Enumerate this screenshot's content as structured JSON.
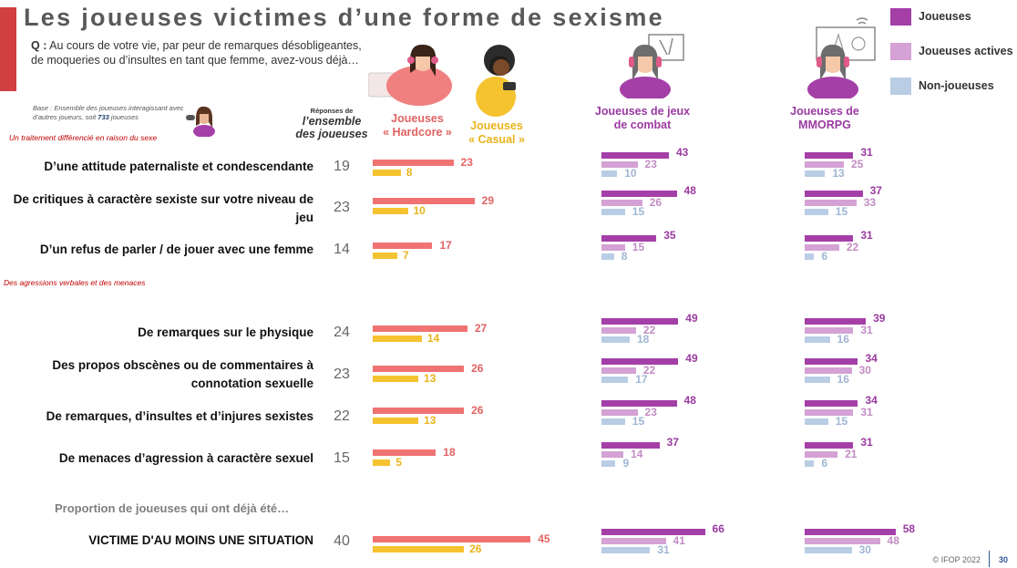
{
  "title": "Les joueuses victimes d’une forme de sexisme",
  "question": {
    "prefix": "Q :",
    "text": "Au cours de votre vie, par peur de remarques désobligeantes, de moqueries ou d’insultes en tant que femme, avez-vous déjà…"
  },
  "base_note": {
    "prefix": "Base : Ensemble des joueuses interagissant avec d’autres joueurs, soit ",
    "count": "733",
    "suffix": " joueuses"
  },
  "sections": {
    "traitement": "Un traitement différencié en raison du sexe",
    "agressions": "Des agressions verbales et des menaces"
  },
  "headers": {
    "ensemble_small": "Réponses de",
    "ensemble_big": "l’ensemble des joueuses",
    "hardcore_line1": "Joueuses",
    "hardcore_line2": "« Hardcore »",
    "casual_line1": "Joueuses",
    "casual_line2": "« Casual »",
    "combat_line1": "Joueuses de jeux",
    "combat_line2": "de combat",
    "mmorpg_line1": "Joueuses de",
    "mmorpg_line2": "MMORPG"
  },
  "legend": {
    "joueuses": "Joueuses",
    "actives": "Joueuses actives",
    "non": "Non-joueuses"
  },
  "proportion_label": "Proportion de joueuses qui ont déjà été…",
  "footer": "© IFOP 2022",
  "page_number": "30",
  "colors": {
    "hardcore": "#f07373",
    "casual": "#f5c330",
    "joueuses": "#a43fa8",
    "actives": "#d4a2d4",
    "non": "#b9cde5",
    "hardcore_text": "#e26262",
    "casual_text": "#e8b41c",
    "purple_text": "#9a3aa0",
    "title_red": "#d04040"
  },
  "chart_data": {
    "type": "bar",
    "title": "Les joueuses victimes d’une forme de sexisme",
    "categories": [
      "D’une attitude paternaliste et condescendante",
      "De critiques à caractère sexiste sur votre niveau de jeu",
      "D’un refus de parler / de jouer avec une femme",
      "De remarques sur le physique",
      "Des propos obscènes ou de commentaires à connotation sexuelle",
      "De remarques, d’insultes et d’injures sexistes",
      "De menaces d’agression à caractère sexuel",
      "VICTIME D'AU MOINS UNE SITUATION"
    ],
    "ensemble": [
      19,
      23,
      14,
      24,
      23,
      22,
      15,
      40
    ],
    "hardcore_casual": {
      "series": [
        {
          "name": "Joueuses « Hardcore »",
          "values": [
            23,
            29,
            17,
            27,
            26,
            26,
            18,
            45
          ]
        },
        {
          "name": "Joueuses « Casual »",
          "values": [
            8,
            10,
            7,
            14,
            13,
            13,
            5,
            26
          ]
        }
      ]
    },
    "combat": {
      "name": "Joueuses de jeux de combat",
      "series": [
        {
          "name": "Joueuses",
          "values": [
            43,
            48,
            35,
            49,
            49,
            48,
            37,
            66
          ]
        },
        {
          "name": "Joueuses actives",
          "values": [
            23,
            26,
            15,
            22,
            22,
            23,
            14,
            41
          ]
        },
        {
          "name": "Non-joueuses",
          "values": [
            10,
            15,
            8,
            18,
            17,
            15,
            9,
            31
          ]
        }
      ]
    },
    "mmorpg": {
      "name": "Joueuses de MMORPG",
      "series": [
        {
          "name": "Joueuses",
          "values": [
            31,
            37,
            31,
            39,
            34,
            34,
            31,
            58
          ]
        },
        {
          "name": "Joueuses actives",
          "values": [
            25,
            33,
            22,
            31,
            30,
            31,
            21,
            48
          ]
        },
        {
          "name": "Non-joueuses",
          "values": [
            13,
            15,
            6,
            16,
            16,
            15,
            6,
            30
          ]
        }
      ]
    }
  }
}
